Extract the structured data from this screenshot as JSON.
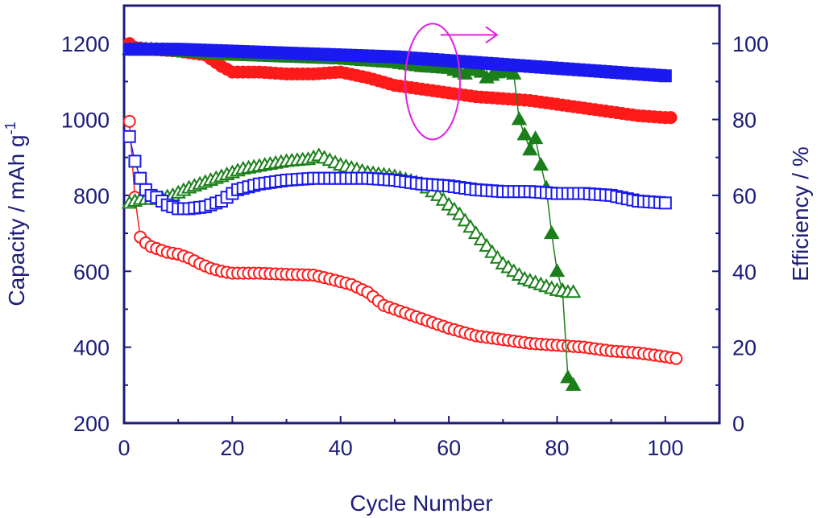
{
  "chart_data": {
    "type": "scatter",
    "xlabel": "Cycle Number",
    "ylabel_left_main": "Capacity / mAh g",
    "ylabel_left_sup": "-1",
    "ylabel_right": "Efficiency / %",
    "xlim": [
      0,
      110
    ],
    "ylim_left": [
      200,
      1300
    ],
    "ylim_right": [
      0,
      110
    ],
    "x_ticks": [
      "0",
      "20",
      "40",
      "60",
      "80",
      "100"
    ],
    "y_left_ticks": [
      "200",
      "400",
      "600",
      "800",
      "1000",
      "1200"
    ],
    "y_right_ticks": [
      "0",
      "20",
      "40",
      "60",
      "80",
      "100"
    ],
    "annotation": {
      "type": "ellipse-with-arrow",
      "points_to": "right-axis",
      "color": "#e020e0",
      "center_x": 57,
      "center_y_right": 90
    },
    "colors": {
      "axis": "#1c1c7a",
      "red": "#ff1a1a",
      "green": "#1a7f1a",
      "blue": "#1a1aee",
      "magenta": "#e020e0"
    },
    "series": [
      {
        "color": "red",
        "marker": "circle",
        "fill": "filled",
        "axis": "right",
        "x": [
          1,
          2,
          5,
          10,
          15,
          18,
          20,
          25,
          30,
          35,
          40,
          45,
          50,
          55,
          60,
          65,
          70,
          75,
          80,
          85,
          90,
          95,
          100,
          101
        ],
        "y": [
          100,
          99,
          98.5,
          98,
          97,
          94,
          92.5,
          92.5,
          92,
          92,
          92.5,
          91,
          89,
          88,
          87,
          86,
          85.5,
          85,
          84,
          83,
          82,
          81,
          80.5,
          80.5
        ]
      },
      {
        "color": "red",
        "marker": "circle",
        "fill": "open",
        "axis": "left",
        "x": [
          1,
          2,
          3,
          4,
          5,
          6,
          8,
          10,
          12,
          14,
          16,
          18,
          20,
          25,
          30,
          35,
          38,
          42,
          45,
          48,
          52,
          56,
          60,
          65,
          70,
          75,
          80,
          85,
          90,
          95,
          100,
          102
        ],
        "y": [
          995,
          795,
          690,
          675,
          665,
          660,
          650,
          645,
          635,
          620,
          608,
          600,
          595,
          595,
          592,
          590,
          580,
          565,
          545,
          510,
          490,
          470,
          450,
          430,
          420,
          410,
          405,
          400,
          390,
          385,
          375,
          370
        ]
      },
      {
        "color": "green",
        "marker": "triangle",
        "fill": "filled",
        "axis": "right",
        "x": [
          1,
          5,
          10,
          20,
          30,
          40,
          50,
          55,
          60,
          63,
          65,
          67,
          70,
          72,
          73,
          74,
          75,
          76,
          77,
          78,
          79,
          80,
          81,
          82,
          83
        ],
        "y": [
          98.5,
          98.5,
          98,
          97,
          96.5,
          96,
          95,
          94,
          93.5,
          92,
          94,
          91,
          93,
          92,
          80,
          76,
          72,
          75,
          68,
          62,
          50,
          40,
          35,
          12,
          10
        ]
      },
      {
        "color": "green",
        "marker": "triangle",
        "fill": "open",
        "axis": "left",
        "x": [
          1,
          3,
          6,
          9,
          12,
          15,
          18,
          22,
          26,
          30,
          34,
          36,
          40,
          45,
          50,
          55,
          58,
          62,
          65,
          68,
          70,
          72,
          74,
          76,
          78,
          80,
          82,
          83
        ],
        "y": [
          780,
          790,
          790,
          800,
          820,
          835,
          850,
          870,
          880,
          890,
          895,
          905,
          880,
          860,
          850,
          830,
          800,
          750,
          700,
          650,
          620,
          600,
          580,
          570,
          560,
          550,
          545,
          545
        ]
      },
      {
        "color": "blue",
        "marker": "square",
        "fill": "filled",
        "axis": "right",
        "x": [
          1,
          5,
          10,
          20,
          30,
          40,
          50,
          60,
          70,
          75,
          80,
          85,
          90,
          95,
          100
        ],
        "y": [
          98.5,
          98.5,
          98.5,
          98,
          97.5,
          97,
          96.5,
          95.5,
          94.5,
          94,
          93.5,
          93,
          92.5,
          92,
          91.5
        ]
      },
      {
        "color": "blue",
        "marker": "square",
        "fill": "open",
        "axis": "left",
        "x": [
          1,
          2,
          3,
          4,
          5,
          6,
          8,
          10,
          12,
          15,
          18,
          21,
          25,
          30,
          35,
          40,
          45,
          50,
          55,
          60,
          65,
          70,
          75,
          80,
          85,
          90,
          95,
          100
        ],
        "y": [
          955,
          890,
          845,
          815,
          800,
          795,
          775,
          765,
          765,
          770,
          785,
          815,
          830,
          840,
          845,
          845,
          845,
          840,
          830,
          825,
          815,
          810,
          810,
          805,
          805,
          800,
          785,
          780
        ]
      }
    ]
  }
}
